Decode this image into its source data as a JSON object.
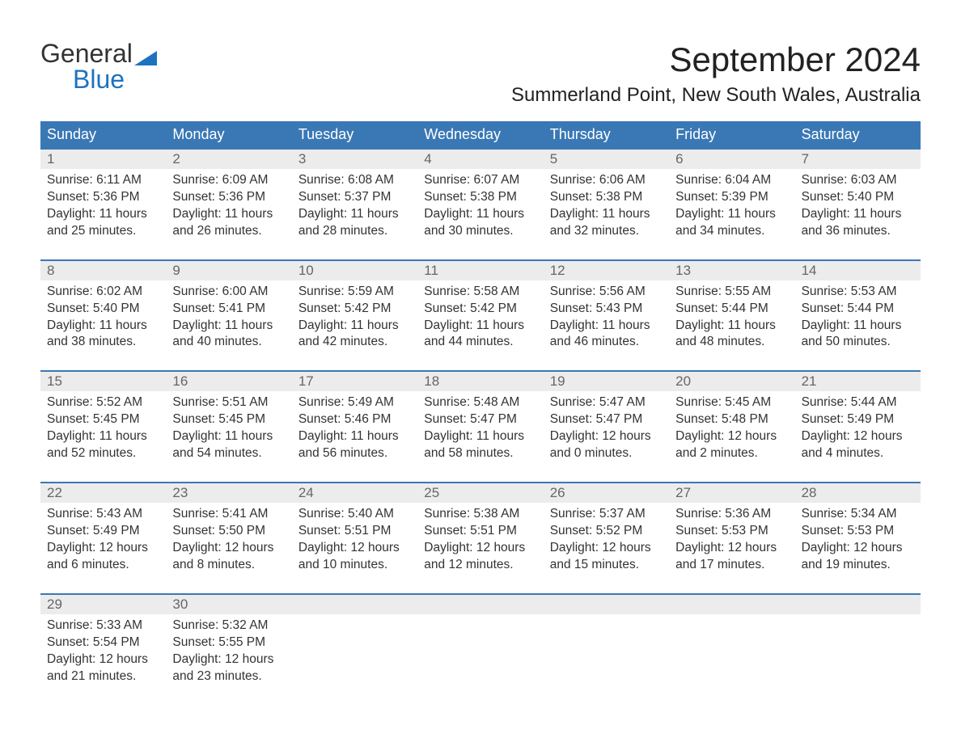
{
  "logo": {
    "text1": "General",
    "text2": "Blue",
    "flag_color": "#1e73be"
  },
  "title": "September 2024",
  "location": "Summerland Point, New South Wales, Australia",
  "colors": {
    "header_bg": "#3a78b5",
    "header_text": "#ffffff",
    "daynum_bg": "#ececec",
    "daynum_text": "#666666",
    "body_text": "#333333",
    "week_border": "#3a78b5",
    "page_bg": "#ffffff",
    "logo_blue": "#1e73be"
  },
  "typography": {
    "month_title_pt": 42,
    "location_pt": 24,
    "day_header_pt": 18,
    "daynum_pt": 17,
    "cell_pt": 15.5,
    "font_family": "Arial"
  },
  "layout": {
    "columns": 7,
    "rows": 5,
    "cell_lines": 4
  },
  "day_names": [
    "Sunday",
    "Monday",
    "Tuesday",
    "Wednesday",
    "Thursday",
    "Friday",
    "Saturday"
  ],
  "weeks": [
    [
      {
        "n": "1",
        "sr": "Sunrise: 6:11 AM",
        "ss": "Sunset: 5:36 PM",
        "d1": "Daylight: 11 hours",
        "d2": "and 25 minutes."
      },
      {
        "n": "2",
        "sr": "Sunrise: 6:09 AM",
        "ss": "Sunset: 5:36 PM",
        "d1": "Daylight: 11 hours",
        "d2": "and 26 minutes."
      },
      {
        "n": "3",
        "sr": "Sunrise: 6:08 AM",
        "ss": "Sunset: 5:37 PM",
        "d1": "Daylight: 11 hours",
        "d2": "and 28 minutes."
      },
      {
        "n": "4",
        "sr": "Sunrise: 6:07 AM",
        "ss": "Sunset: 5:38 PM",
        "d1": "Daylight: 11 hours",
        "d2": "and 30 minutes."
      },
      {
        "n": "5",
        "sr": "Sunrise: 6:06 AM",
        "ss": "Sunset: 5:38 PM",
        "d1": "Daylight: 11 hours",
        "d2": "and 32 minutes."
      },
      {
        "n": "6",
        "sr": "Sunrise: 6:04 AM",
        "ss": "Sunset: 5:39 PM",
        "d1": "Daylight: 11 hours",
        "d2": "and 34 minutes."
      },
      {
        "n": "7",
        "sr": "Sunrise: 6:03 AM",
        "ss": "Sunset: 5:40 PM",
        "d1": "Daylight: 11 hours",
        "d2": "and 36 minutes."
      }
    ],
    [
      {
        "n": "8",
        "sr": "Sunrise: 6:02 AM",
        "ss": "Sunset: 5:40 PM",
        "d1": "Daylight: 11 hours",
        "d2": "and 38 minutes."
      },
      {
        "n": "9",
        "sr": "Sunrise: 6:00 AM",
        "ss": "Sunset: 5:41 PM",
        "d1": "Daylight: 11 hours",
        "d2": "and 40 minutes."
      },
      {
        "n": "10",
        "sr": "Sunrise: 5:59 AM",
        "ss": "Sunset: 5:42 PM",
        "d1": "Daylight: 11 hours",
        "d2": "and 42 minutes."
      },
      {
        "n": "11",
        "sr": "Sunrise: 5:58 AM",
        "ss": "Sunset: 5:42 PM",
        "d1": "Daylight: 11 hours",
        "d2": "and 44 minutes."
      },
      {
        "n": "12",
        "sr": "Sunrise: 5:56 AM",
        "ss": "Sunset: 5:43 PM",
        "d1": "Daylight: 11 hours",
        "d2": "and 46 minutes."
      },
      {
        "n": "13",
        "sr": "Sunrise: 5:55 AM",
        "ss": "Sunset: 5:44 PM",
        "d1": "Daylight: 11 hours",
        "d2": "and 48 minutes."
      },
      {
        "n": "14",
        "sr": "Sunrise: 5:53 AM",
        "ss": "Sunset: 5:44 PM",
        "d1": "Daylight: 11 hours",
        "d2": "and 50 minutes."
      }
    ],
    [
      {
        "n": "15",
        "sr": "Sunrise: 5:52 AM",
        "ss": "Sunset: 5:45 PM",
        "d1": "Daylight: 11 hours",
        "d2": "and 52 minutes."
      },
      {
        "n": "16",
        "sr": "Sunrise: 5:51 AM",
        "ss": "Sunset: 5:45 PM",
        "d1": "Daylight: 11 hours",
        "d2": "and 54 minutes."
      },
      {
        "n": "17",
        "sr": "Sunrise: 5:49 AM",
        "ss": "Sunset: 5:46 PM",
        "d1": "Daylight: 11 hours",
        "d2": "and 56 minutes."
      },
      {
        "n": "18",
        "sr": "Sunrise: 5:48 AM",
        "ss": "Sunset: 5:47 PM",
        "d1": "Daylight: 11 hours",
        "d2": "and 58 minutes."
      },
      {
        "n": "19",
        "sr": "Sunrise: 5:47 AM",
        "ss": "Sunset: 5:47 PM",
        "d1": "Daylight: 12 hours",
        "d2": "and 0 minutes."
      },
      {
        "n": "20",
        "sr": "Sunrise: 5:45 AM",
        "ss": "Sunset: 5:48 PM",
        "d1": "Daylight: 12 hours",
        "d2": "and 2 minutes."
      },
      {
        "n": "21",
        "sr": "Sunrise: 5:44 AM",
        "ss": "Sunset: 5:49 PM",
        "d1": "Daylight: 12 hours",
        "d2": "and 4 minutes."
      }
    ],
    [
      {
        "n": "22",
        "sr": "Sunrise: 5:43 AM",
        "ss": "Sunset: 5:49 PM",
        "d1": "Daylight: 12 hours",
        "d2": "and 6 minutes."
      },
      {
        "n": "23",
        "sr": "Sunrise: 5:41 AM",
        "ss": "Sunset: 5:50 PM",
        "d1": "Daylight: 12 hours",
        "d2": "and 8 minutes."
      },
      {
        "n": "24",
        "sr": "Sunrise: 5:40 AM",
        "ss": "Sunset: 5:51 PM",
        "d1": "Daylight: 12 hours",
        "d2": "and 10 minutes."
      },
      {
        "n": "25",
        "sr": "Sunrise: 5:38 AM",
        "ss": "Sunset: 5:51 PM",
        "d1": "Daylight: 12 hours",
        "d2": "and 12 minutes."
      },
      {
        "n": "26",
        "sr": "Sunrise: 5:37 AM",
        "ss": "Sunset: 5:52 PM",
        "d1": "Daylight: 12 hours",
        "d2": "and 15 minutes."
      },
      {
        "n": "27",
        "sr": "Sunrise: 5:36 AM",
        "ss": "Sunset: 5:53 PM",
        "d1": "Daylight: 12 hours",
        "d2": "and 17 minutes."
      },
      {
        "n": "28",
        "sr": "Sunrise: 5:34 AM",
        "ss": "Sunset: 5:53 PM",
        "d1": "Daylight: 12 hours",
        "d2": "and 19 minutes."
      }
    ],
    [
      {
        "n": "29",
        "sr": "Sunrise: 5:33 AM",
        "ss": "Sunset: 5:54 PM",
        "d1": "Daylight: 12 hours",
        "d2": "and 21 minutes."
      },
      {
        "n": "30",
        "sr": "Sunrise: 5:32 AM",
        "ss": "Sunset: 5:55 PM",
        "d1": "Daylight: 12 hours",
        "d2": "and 23 minutes."
      },
      {
        "n": "",
        "sr": "",
        "ss": "",
        "d1": "",
        "d2": ""
      },
      {
        "n": "",
        "sr": "",
        "ss": "",
        "d1": "",
        "d2": ""
      },
      {
        "n": "",
        "sr": "",
        "ss": "",
        "d1": "",
        "d2": ""
      },
      {
        "n": "",
        "sr": "",
        "ss": "",
        "d1": "",
        "d2": ""
      },
      {
        "n": "",
        "sr": "",
        "ss": "",
        "d1": "",
        "d2": ""
      }
    ]
  ]
}
